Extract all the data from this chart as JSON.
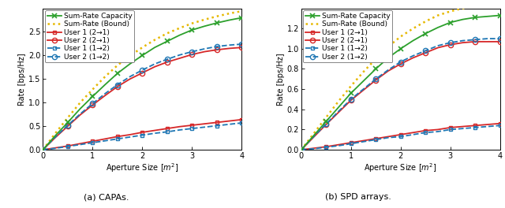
{
  "x_values": [
    0,
    0.25,
    0.5,
    0.75,
    1.0,
    1.25,
    1.5,
    1.75,
    2.0,
    2.25,
    2.5,
    2.75,
    3.0,
    3.25,
    3.5,
    3.75,
    4.0
  ],
  "capa": {
    "sum_rate_capacity": [
      0,
      0.3,
      0.58,
      0.87,
      1.13,
      1.38,
      1.62,
      1.82,
      2.0,
      2.17,
      2.3,
      2.43,
      2.54,
      2.62,
      2.69,
      2.75,
      2.8
    ],
    "sum_rate_bound": [
      0,
      0.35,
      0.68,
      1.0,
      1.28,
      1.55,
      1.79,
      1.99,
      2.17,
      2.33,
      2.47,
      2.58,
      2.68,
      2.76,
      2.83,
      2.89,
      2.94
    ],
    "user1_21": [
      0,
      0.04,
      0.08,
      0.13,
      0.18,
      0.23,
      0.28,
      0.32,
      0.37,
      0.41,
      0.45,
      0.49,
      0.52,
      0.55,
      0.58,
      0.61,
      0.64
    ],
    "user2_21": [
      0,
      0.26,
      0.5,
      0.74,
      0.95,
      1.15,
      1.34,
      1.5,
      1.63,
      1.76,
      1.86,
      1.94,
      2.02,
      2.08,
      2.12,
      2.15,
      2.17
    ],
    "user1_12": [
      0,
      0.03,
      0.07,
      0.11,
      0.15,
      0.19,
      0.23,
      0.27,
      0.31,
      0.35,
      0.38,
      0.42,
      0.45,
      0.48,
      0.51,
      0.54,
      0.57
    ],
    "user2_12": [
      0,
      0.27,
      0.52,
      0.76,
      0.98,
      1.19,
      1.38,
      1.55,
      1.69,
      1.82,
      1.92,
      2.01,
      2.08,
      2.14,
      2.19,
      2.22,
      2.24
    ],
    "ylim": [
      0,
      3.0
    ],
    "yticks": [
      0,
      0.5,
      1.0,
      1.5,
      2.0,
      2.5
    ],
    "title": "(a) CAPAs."
  },
  "spd": {
    "sum_rate_capacity": [
      0,
      0.14,
      0.28,
      0.42,
      0.56,
      0.68,
      0.8,
      0.91,
      1.0,
      1.08,
      1.15,
      1.21,
      1.26,
      1.29,
      1.31,
      1.32,
      1.33
    ],
    "sum_rate_bound": [
      0,
      0.16,
      0.32,
      0.48,
      0.63,
      0.77,
      0.9,
      1.02,
      1.12,
      1.2,
      1.27,
      1.33,
      1.37,
      1.4,
      1.42,
      1.43,
      1.44
    ],
    "user1_21": [
      0,
      0.015,
      0.03,
      0.05,
      0.07,
      0.09,
      0.11,
      0.13,
      0.15,
      0.17,
      0.19,
      0.2,
      0.22,
      0.23,
      0.24,
      0.25,
      0.26
    ],
    "user2_21": [
      0,
      0.125,
      0.25,
      0.37,
      0.49,
      0.59,
      0.69,
      0.78,
      0.85,
      0.91,
      0.96,
      1.01,
      1.04,
      1.06,
      1.07,
      1.07,
      1.07
    ],
    "user1_12": [
      0,
      0.01,
      0.025,
      0.04,
      0.06,
      0.08,
      0.1,
      0.12,
      0.13,
      0.15,
      0.17,
      0.18,
      0.2,
      0.21,
      0.22,
      0.23,
      0.24
    ],
    "user2_12": [
      0,
      0.13,
      0.255,
      0.38,
      0.5,
      0.6,
      0.7,
      0.79,
      0.87,
      0.93,
      0.98,
      1.03,
      1.06,
      1.08,
      1.09,
      1.1,
      1.1
    ],
    "ylim": [
      0,
      1.4
    ],
    "yticks": [
      0,
      0.2,
      0.4,
      0.6,
      0.8,
      1.0,
      1.2
    ],
    "title": "(b) SPD arrays."
  },
  "xlabel": "Aperture Size $[m^2]$",
  "ylabel": "Rate [bps/Hz]",
  "colors": {
    "sum_rate_capacity": "#2ca02c",
    "sum_rate_bound": "#e6b800",
    "user_21": "#d62728",
    "user_12": "#1f77b4"
  },
  "x_ticks": [
    0,
    1,
    2,
    3,
    4
  ],
  "fontsize": 7.0,
  "legend_labels": [
    "Sum-Rate Capacity",
    "Sum-Rate (Bound)",
    "User 1 (2→1)",
    "User 2 (2→1)",
    "User 1 (1→2)",
    "User 2 (1→2)"
  ]
}
